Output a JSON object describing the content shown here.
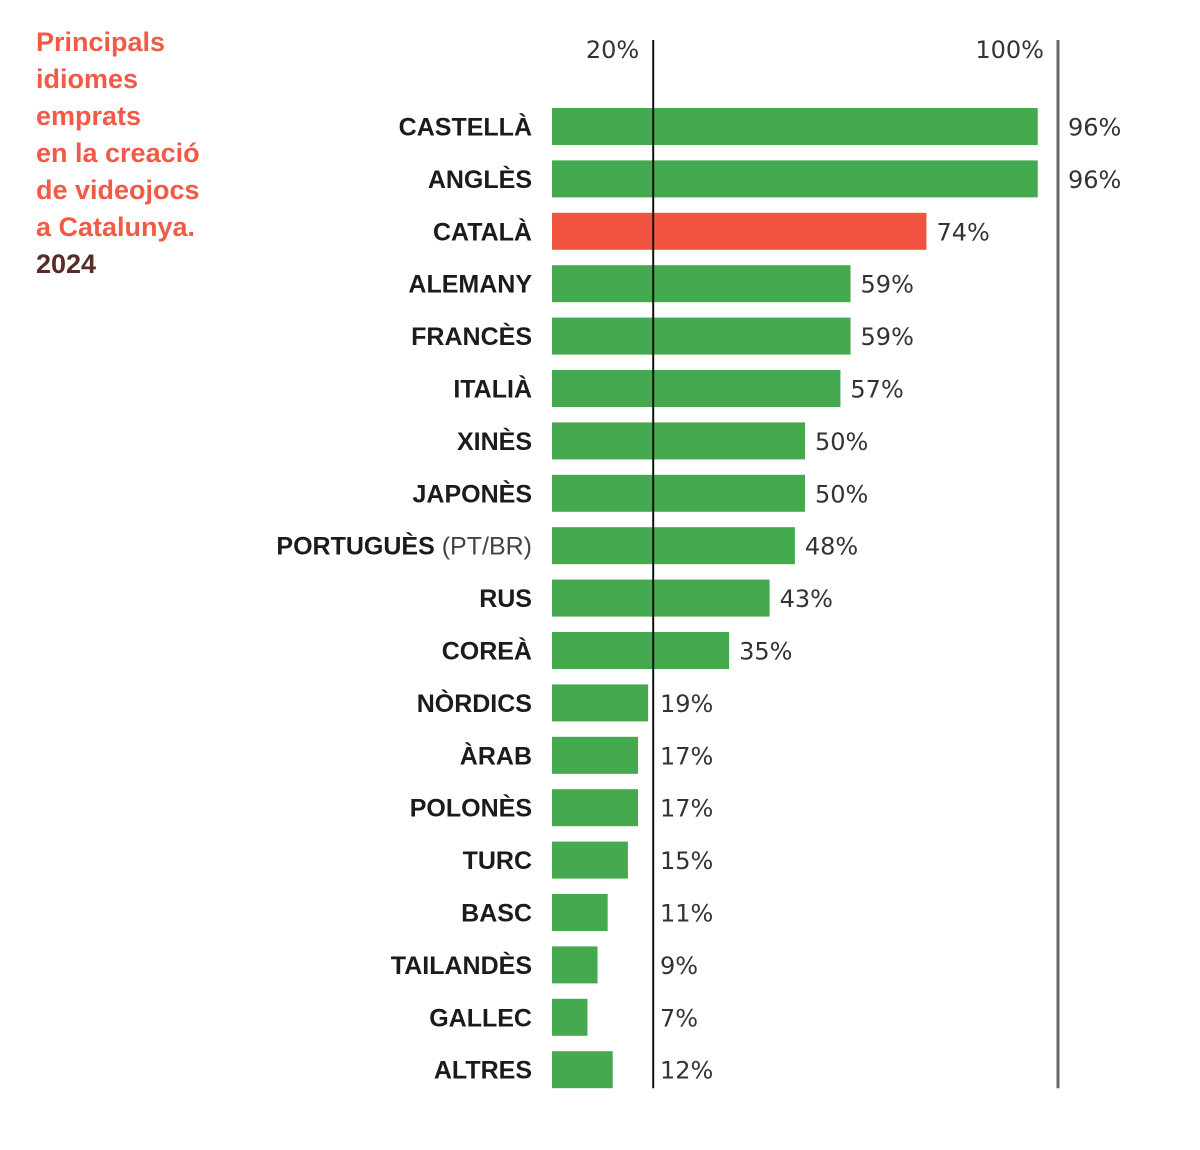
{
  "title": {
    "lines": [
      "Principals",
      "idiomes",
      "emprats",
      "en la creació",
      "de videojocs",
      "a Catalunya."
    ],
    "year": "2024"
  },
  "colors": {
    "default": "#44a94f",
    "highlight": "#f05441",
    "axis": "#111111",
    "reference": "#666666"
  },
  "chart_data": {
    "type": "bar",
    "orientation": "horizontal",
    "title": "Principals idiomes emprats en la creació de videojocs a Catalunya. 2024",
    "xlabel": "",
    "ylabel": "",
    "xlim": [
      0,
      100
    ],
    "reference_lines": [
      {
        "value": 20,
        "label": "20%"
      },
      {
        "value": 100,
        "label": "100%"
      }
    ],
    "categories": [
      "CASTELLÀ",
      "ANGLÈS",
      "CATALÀ",
      "ALEMANY",
      "FRANCÈS",
      "ITALIÀ",
      "XINÈS",
      "JAPONÈS",
      "PORTUGUÈS (PT/BR)",
      "RUS",
      "COREÀ",
      "NÒRDICS",
      "ÀRAB",
      "POLONÈS",
      "TURC",
      "BASC",
      "TAILANDÈS",
      "GALLEC",
      "ALTRES"
    ],
    "category_main": [
      "CASTELLÀ",
      "ANGLÈS",
      "CATALÀ",
      "ALEMANY",
      "FRANCÈS",
      "ITALIÀ",
      "XINÈS",
      "JAPONÈS",
      "PORTUGUÈS",
      "RUS",
      "COREÀ",
      "NÒRDICS",
      "ÀRAB",
      "POLONÈS",
      "TURC",
      "BASC",
      "TAILANDÈS",
      "GALLEC",
      "ALTRES"
    ],
    "category_suffix": [
      "",
      "",
      "",
      "",
      "",
      "",
      "",
      "",
      "(PT/BR)",
      "",
      "",
      "",
      "",
      "",
      "",
      "",
      "",
      "",
      ""
    ],
    "values": [
      96,
      96,
      74,
      59,
      59,
      57,
      50,
      50,
      48,
      43,
      35,
      19,
      17,
      17,
      15,
      11,
      9,
      7,
      12
    ],
    "value_labels": [
      "96%",
      "96%",
      "74%",
      "59%",
      "59%",
      "57%",
      "50%",
      "50%",
      "48%",
      "43%",
      "35%",
      "19%",
      "17%",
      "17%",
      "15%",
      "11%",
      "9%",
      "7%",
      "12%"
    ],
    "highlight": "CATALÀ"
  }
}
